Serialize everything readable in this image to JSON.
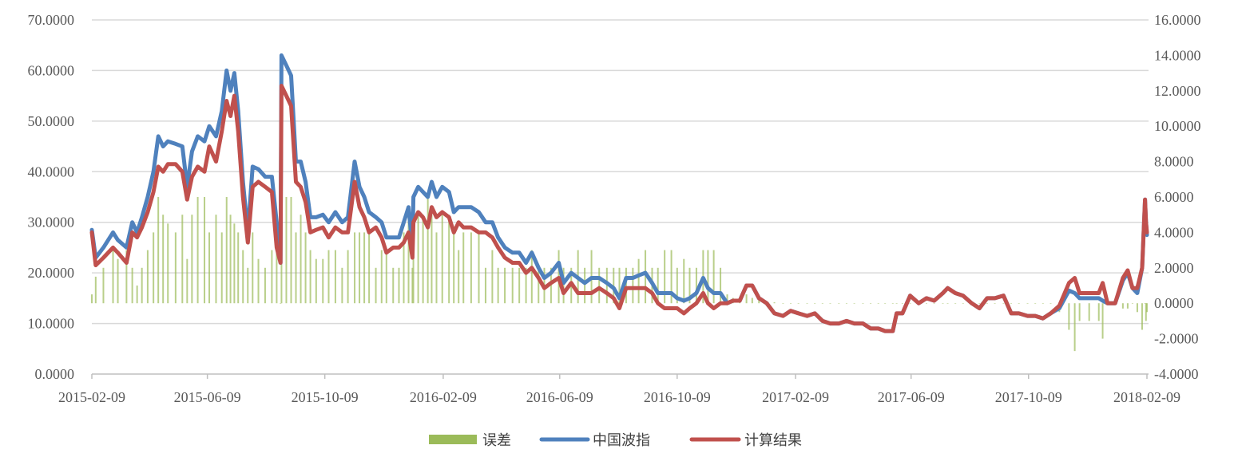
{
  "chart_data": {
    "type": "bar+line",
    "title": "",
    "xlabel": "",
    "ylabel_left": "",
    "ylabel_right": "",
    "xlim": [
      "2015-02-09",
      "2018-02-09"
    ],
    "ylim_left": [
      0,
      70
    ],
    "ylim_right": [
      -4,
      16
    ],
    "grid": true,
    "legend_position": "bottom",
    "x_ticks": [
      "2015-02-09",
      "2015-06-09",
      "2015-10-09",
      "2016-02-09",
      "2016-06-09",
      "2016-10-09",
      "2017-02-09",
      "2017-06-09",
      "2017-10-09",
      "2018-02-09"
    ],
    "y_ticks_left": [
      "0.0000",
      "10.0000",
      "20.0000",
      "30.0000",
      "40.0000",
      "50.0000",
      "60.0000",
      "70.0000"
    ],
    "y_ticks_right": [
      "-4.0000",
      "-2.0000",
      "0.0000",
      "2.0000",
      "4.0000",
      "6.0000",
      "8.0000",
      "10.0000",
      "12.0000",
      "14.0000",
      "16.0000"
    ],
    "series": [
      {
        "name": "误差",
        "kind": "bar",
        "axis": "right",
        "color": "#9bbb59"
      },
      {
        "name": "中国波指",
        "kind": "line",
        "axis": "left",
        "color": "#4f81bd"
      },
      {
        "name": "计算结果",
        "kind": "line",
        "axis": "left",
        "color": "#c0504d"
      }
    ],
    "columns": [
      "date",
      "误差",
      "中国波指",
      "计算结果"
    ],
    "rows": [
      [
        "2015-02-09",
        0.5,
        28.5,
        28
      ],
      [
        "2015-02-13",
        1.5,
        23,
        21.5
      ],
      [
        "2015-02-21",
        2,
        25,
        23
      ],
      [
        "2015-03-03",
        3,
        28,
        25
      ],
      [
        "2015-03-08",
        2.5,
        26.5,
        24
      ],
      [
        "2015-03-17",
        3,
        25,
        22
      ],
      [
        "2015-03-23",
        2,
        30,
        28
      ],
      [
        "2015-03-28",
        1,
        28,
        27
      ],
      [
        "2015-04-02",
        2,
        31,
        29
      ],
      [
        "2015-04-08",
        3,
        35,
        32
      ],
      [
        "2015-04-14",
        4,
        40,
        36
      ],
      [
        "2015-04-19",
        6,
        47,
        41
      ],
      [
        "2015-04-24",
        5,
        45,
        40
      ],
      [
        "2015-04-29",
        4.5,
        46,
        41.5
      ],
      [
        "2015-05-07",
        4,
        45.5,
        41.5
      ],
      [
        "2015-05-14",
        5,
        45,
        40
      ],
      [
        "2015-05-19",
        2.5,
        37,
        34.5
      ],
      [
        "2015-05-24",
        5,
        44,
        39
      ],
      [
        "2015-05-30",
        6,
        47,
        41
      ],
      [
        "2015-06-06",
        6,
        46,
        40
      ],
      [
        "2015-06-11",
        4,
        49,
        45
      ],
      [
        "2015-06-18",
        5,
        47,
        42
      ],
      [
        "2015-06-24",
        4,
        52,
        48
      ],
      [
        "2015-06-29",
        6,
        60,
        54
      ],
      [
        "2015-07-03",
        5,
        56,
        51
      ],
      [
        "2015-07-07",
        4.5,
        59.5,
        55
      ],
      [
        "2015-07-11",
        4,
        52,
        48
      ],
      [
        "2015-07-16",
        3,
        38,
        35
      ],
      [
        "2015-07-21",
        2,
        28,
        26
      ],
      [
        "2015-07-26",
        4,
        41,
        37
      ],
      [
        "2015-08-01",
        2.5,
        40.5,
        38
      ],
      [
        "2015-08-08",
        2,
        39,
        37
      ],
      [
        "2015-08-15",
        3,
        39,
        36
      ],
      [
        "2015-08-20",
        5,
        30,
        25
      ],
      [
        "2015-08-24",
        0,
        22,
        22
      ],
      [
        "2015-08-25",
        6,
        63,
        57
      ],
      [
        "2015-08-30",
        6,
        61,
        55
      ],
      [
        "2015-09-04",
        6,
        59,
        53
      ],
      [
        "2015-09-09",
        4,
        42,
        38
      ],
      [
        "2015-09-14",
        5,
        42,
        37
      ],
      [
        "2015-09-19",
        4,
        38,
        34
      ],
      [
        "2015-09-24",
        3,
        31,
        28
      ],
      [
        "2015-09-30",
        2.5,
        31,
        28.5
      ],
      [
        "2015-10-07",
        2.5,
        31.5,
        29
      ],
      [
        "2015-10-13",
        3,
        30,
        27
      ],
      [
        "2015-10-20",
        3,
        32,
        29
      ],
      [
        "2015-10-27",
        2,
        30,
        28
      ],
      [
        "2015-11-02",
        3,
        31,
        28
      ],
      [
        "2015-11-09",
        4,
        42,
        38
      ],
      [
        "2015-11-14",
        4,
        37,
        33
      ],
      [
        "2015-11-19",
        4,
        35,
        31
      ],
      [
        "2015-11-24",
        4,
        32,
        28
      ],
      [
        "2015-12-01",
        2,
        31,
        29
      ],
      [
        "2015-12-07",
        3,
        30,
        27
      ],
      [
        "2015-12-12",
        3,
        27,
        24
      ],
      [
        "2015-12-19",
        2,
        27,
        25
      ],
      [
        "2015-12-25",
        2,
        27,
        25
      ],
      [
        "2015-12-30",
        4,
        30,
        26
      ],
      [
        "2016-01-04",
        5,
        33,
        28
      ],
      [
        "2016-01-08",
        2,
        25,
        23
      ],
      [
        "2016-01-09",
        5,
        35,
        30
      ],
      [
        "2016-01-14",
        5,
        37,
        32
      ],
      [
        "2016-01-19",
        5,
        36,
        31
      ],
      [
        "2016-01-24",
        6,
        35,
        29
      ],
      [
        "2016-01-28",
        5,
        38,
        33
      ],
      [
        "2016-02-02",
        4,
        35,
        31
      ],
      [
        "2016-02-08",
        5,
        37,
        32
      ],
      [
        "2016-02-15",
        5,
        36,
        31
      ],
      [
        "2016-02-20",
        4,
        32,
        28
      ],
      [
        "2016-02-25",
        3,
        33,
        30
      ],
      [
        "2016-03-01",
        4,
        33,
        29
      ],
      [
        "2016-03-09",
        4,
        33,
        29
      ],
      [
        "2016-03-17",
        4,
        32,
        28
      ],
      [
        "2016-03-24",
        2,
        30,
        28
      ],
      [
        "2016-03-31",
        3,
        30,
        27
      ],
      [
        "2016-04-06",
        2,
        27,
        25
      ],
      [
        "2016-04-13",
        2,
        25,
        23
      ],
      [
        "2016-04-21",
        2,
        24,
        22
      ],
      [
        "2016-04-28",
        2,
        24,
        22
      ],
      [
        "2016-05-05",
        2,
        22,
        20
      ],
      [
        "2016-05-11",
        3,
        24,
        21
      ],
      [
        "2016-05-18",
        2,
        21,
        19
      ],
      [
        "2016-05-24",
        2,
        19,
        17
      ],
      [
        "2016-05-31",
        2,
        20,
        18
      ],
      [
        "2016-06-08",
        3,
        22,
        19
      ],
      [
        "2016-06-13",
        2,
        18,
        16
      ],
      [
        "2016-06-21",
        2,
        20,
        18
      ],
      [
        "2016-06-28",
        3,
        19,
        16
      ],
      [
        "2016-07-05",
        2,
        18,
        16
      ],
      [
        "2016-07-12",
        3,
        19,
        16
      ],
      [
        "2016-07-20",
        2,
        19,
        17
      ],
      [
        "2016-07-28",
        2,
        18,
        16
      ],
      [
        "2016-08-04",
        2,
        17,
        15
      ],
      [
        "2016-08-10",
        2,
        15,
        13
      ],
      [
        "2016-08-17",
        2,
        19,
        17
      ],
      [
        "2016-08-24",
        2,
        19,
        17
      ],
      [
        "2016-08-30",
        2.5,
        19.5,
        17
      ],
      [
        "2016-09-06",
        3,
        20,
        17
      ],
      [
        "2016-09-13",
        2,
        18,
        16
      ],
      [
        "2016-09-19",
        2,
        16,
        14
      ],
      [
        "2016-09-26",
        3,
        16,
        13
      ],
      [
        "2016-10-03",
        3,
        16,
        13
      ],
      [
        "2016-10-09",
        2,
        15,
        13
      ],
      [
        "2016-10-16",
        2.5,
        14.5,
        12
      ],
      [
        "2016-10-22",
        2,
        15,
        13
      ],
      [
        "2016-10-29",
        2,
        16,
        14
      ],
      [
        "2016-11-05",
        3,
        19,
        16
      ],
      [
        "2016-11-10",
        3,
        17,
        14
      ],
      [
        "2016-11-16",
        3,
        16,
        13
      ],
      [
        "2016-11-23",
        2,
        16,
        14
      ],
      [
        "2016-11-30",
        0.5,
        14,
        14
      ],
      [
        "2016-12-06",
        0.3,
        14.5,
        14.5
      ],
      [
        "2016-12-13",
        0.3,
        14.5,
        14.5
      ],
      [
        "2016-12-20",
        0.5,
        17.5,
        17.5
      ],
      [
        "2016-12-26",
        0.3,
        17.5,
        17.5
      ],
      [
        "2017-01-02",
        0.2,
        15,
        15
      ],
      [
        "2017-01-10",
        0.1,
        14,
        14
      ],
      [
        "2017-01-18",
        0.05,
        12,
        12
      ],
      [
        "2017-01-27",
        0,
        11.5,
        11.5
      ],
      [
        "2017-02-04",
        0,
        12.5,
        12.5
      ],
      [
        "2017-02-12",
        0,
        12,
        12
      ],
      [
        "2017-02-21",
        0,
        11.5,
        11.5
      ],
      [
        "2017-03-01",
        0,
        12,
        12
      ],
      [
        "2017-03-09",
        0,
        10.5,
        10.5
      ],
      [
        "2017-03-17",
        0,
        10,
        10
      ],
      [
        "2017-03-26",
        0,
        10,
        10
      ],
      [
        "2017-04-03",
        0,
        10.5,
        10.5
      ],
      [
        "2017-04-11",
        0,
        10,
        10
      ],
      [
        "2017-04-20",
        0,
        10,
        10
      ],
      [
        "2017-04-28",
        0,
        9,
        9
      ],
      [
        "2017-05-06",
        0,
        9,
        9
      ],
      [
        "2017-05-13",
        0,
        8.5,
        8.5
      ],
      [
        "2017-05-21",
        0,
        8.5,
        8.5
      ],
      [
        "2017-05-25",
        0,
        12,
        12
      ],
      [
        "2017-05-31",
        0,
        12,
        12
      ],
      [
        "2017-06-08",
        0,
        15.5,
        15.5
      ],
      [
        "2017-06-17",
        0,
        14,
        14
      ],
      [
        "2017-06-25",
        0,
        15,
        15
      ],
      [
        "2017-07-03",
        0,
        14.5,
        14.5
      ],
      [
        "2017-07-12",
        0,
        16,
        16
      ],
      [
        "2017-07-17",
        0,
        17,
        17
      ],
      [
        "2017-07-25",
        0,
        16,
        16
      ],
      [
        "2017-08-02",
        0,
        15.5,
        15.5
      ],
      [
        "2017-08-11",
        0,
        14,
        14
      ],
      [
        "2017-08-19",
        0,
        13,
        13
      ],
      [
        "2017-08-27",
        0,
        15,
        15
      ],
      [
        "2017-09-04",
        0,
        15,
        15
      ],
      [
        "2017-09-13",
        0,
        15.5,
        15.5
      ],
      [
        "2017-09-21",
        0,
        12,
        12
      ],
      [
        "2017-09-29",
        0,
        12,
        12
      ],
      [
        "2017-10-08",
        0,
        11.5,
        11.5
      ],
      [
        "2017-10-16",
        0,
        11.5,
        11.5
      ],
      [
        "2017-10-24",
        0,
        11,
        11
      ],
      [
        "2017-11-01",
        0,
        12,
        12
      ],
      [
        "2017-11-10",
        -0.5,
        13,
        13.5
      ],
      [
        "2017-11-20",
        -1.5,
        16.5,
        18
      ],
      [
        "2017-11-26",
        -2.7,
        16,
        19
      ],
      [
        "2017-12-01",
        -1,
        15,
        16
      ],
      [
        "2017-12-11",
        -1,
        15,
        16
      ],
      [
        "2017-12-21",
        -1,
        15,
        16
      ],
      [
        "2017-12-25",
        -2,
        14.5,
        18
      ],
      [
        "2017-12-30",
        0,
        14,
        14
      ],
      [
        "2018-01-07",
        0,
        14,
        14
      ],
      [
        "2018-01-15",
        -0.3,
        18.5,
        19
      ],
      [
        "2018-01-20",
        -0.3,
        20,
        20.5
      ],
      [
        "2018-01-25",
        0,
        17,
        17
      ],
      [
        "2018-01-30",
        -0.5,
        16,
        17
      ],
      [
        "2018-02-04",
        -1.5,
        21,
        21
      ],
      [
        "2018-02-07",
        0,
        34.5,
        34.5
      ],
      [
        "2018-02-08",
        -1,
        30,
        30
      ],
      [
        "2018-02-09",
        -0.5,
        27.5,
        28
      ]
    ]
  }
}
